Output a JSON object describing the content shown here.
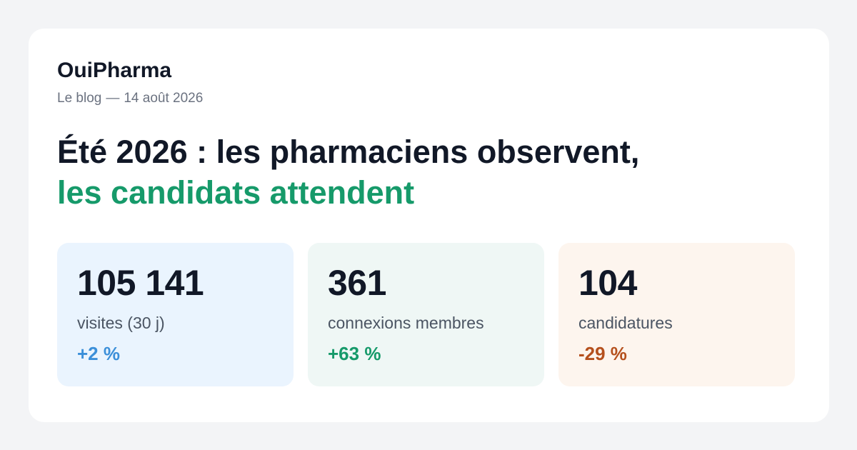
{
  "brand": "OuiPharma",
  "meta": {
    "section": "Le blog",
    "separator": "—",
    "date": "14 août 2026"
  },
  "headline": {
    "line1": "Été 2026 : les pharmaciens observent,",
    "line2": "les candidats attendent"
  },
  "colors": {
    "page_background": "#f3f4f6",
    "card_background": "#ffffff",
    "accent_green": "#169a6a"
  },
  "stats": [
    {
      "value": "105 141",
      "label": "visites (30 j)",
      "change": "+2 %",
      "background": "#eaf4fe",
      "change_color": "#3b8fd9"
    },
    {
      "value": "361",
      "label": "connexions membres",
      "change": "+63 %",
      "background": "#eff7f5",
      "change_color": "#169a6a"
    },
    {
      "value": "104",
      "label": "candidatures",
      "change": "-29 %",
      "background": "#fdf5ee",
      "change_color": "#b5501d"
    }
  ]
}
